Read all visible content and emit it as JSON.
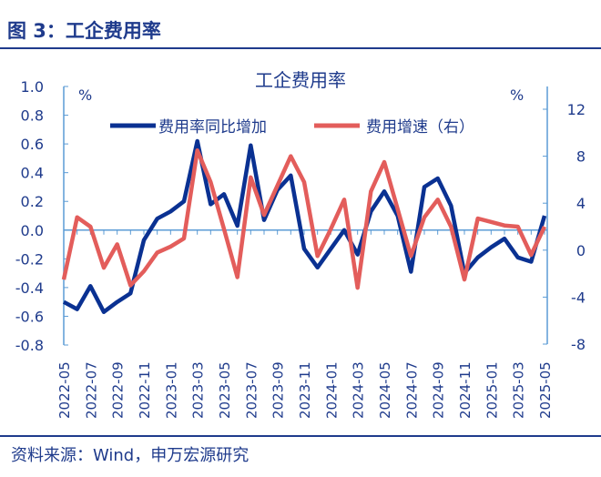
{
  "figure_label": "图 3：工企费用率",
  "source": "资料来源：Wind，申万宏源研究",
  "chart_data": {
    "type": "line",
    "title": "工企费用率",
    "left_unit": "%",
    "right_unit": "%",
    "categories": [
      "2022-05",
      "2022-06",
      "2022-07",
      "2022-08",
      "2022-09",
      "2022-10",
      "2022-11",
      "2022-12",
      "2023-01",
      "2023-02",
      "2023-03",
      "2023-04",
      "2023-05",
      "2023-06",
      "2023-07",
      "2023-08",
      "2023-09",
      "2023-10",
      "2023-11",
      "2023-12",
      "2024-01",
      "2024-02",
      "2024-03",
      "2024-04",
      "2024-05",
      "2024-06",
      "2024-07",
      "2024-08",
      "2024-09",
      "2024-10",
      "2024-11",
      "2024-12",
      "2025-01",
      "2025-02",
      "2025-03",
      "2025-04",
      "2025-05"
    ],
    "tick_labels": [
      "2022-05",
      "2022-07",
      "2022-09",
      "2022-11",
      "2023-01",
      "2023-03",
      "2023-05",
      "2023-07",
      "2023-09",
      "2023-11",
      "2024-01",
      "2024-03",
      "2024-05",
      "2024-07",
      "2024-09",
      "2024-11",
      "2025-01",
      "2025-03",
      "2025-05"
    ],
    "left_ylim": [
      -0.8,
      1.0
    ],
    "left_ticks": [
      "1.0",
      "0.8",
      "0.6",
      "0.4",
      "0.2",
      "0.0",
      "-0.2",
      "-0.4",
      "-0.6",
      "-0.8"
    ],
    "right_ylim": [
      -8,
      14
    ],
    "right_ticks": [
      "12",
      "8",
      "4",
      "0",
      "-4",
      "-8"
    ],
    "legend_placement": "top",
    "series": [
      {
        "name": "费用率同比增加",
        "axis": "left",
        "color": "#0a3192",
        "values": [
          -0.5,
          -0.55,
          -0.39,
          -0.57,
          -0.5,
          -0.44,
          -0.07,
          0.08,
          0.13,
          0.2,
          0.62,
          0.18,
          0.25,
          0.03,
          0.59,
          0.07,
          0.28,
          0.38,
          -0.13,
          -0.26,
          -0.13,
          0.0,
          -0.17,
          0.13,
          0.27,
          0.1,
          -0.29,
          0.3,
          0.36,
          0.17,
          -0.3,
          -0.19,
          -0.12,
          -0.06,
          -0.19,
          -0.22,
          0.1
        ]
      },
      {
        "name": "费用增速（右）",
        "axis": "right",
        "color": "#e35d5b",
        "values": [
          -2.5,
          2.8,
          2.0,
          -1.5,
          0.5,
          -3.0,
          -1.8,
          -0.2,
          0.3,
          1.0,
          8.5,
          5.8,
          1.8,
          -2.3,
          6.2,
          3.0,
          5.5,
          8.0,
          5.8,
          -0.5,
          1.8,
          4.3,
          -3.2,
          5.0,
          7.5,
          3.5,
          -0.5,
          2.8,
          4.3,
          2.0,
          -2.5,
          2.7,
          2.4,
          2.1,
          2.0,
          -0.4,
          2.0
        ]
      }
    ]
  }
}
